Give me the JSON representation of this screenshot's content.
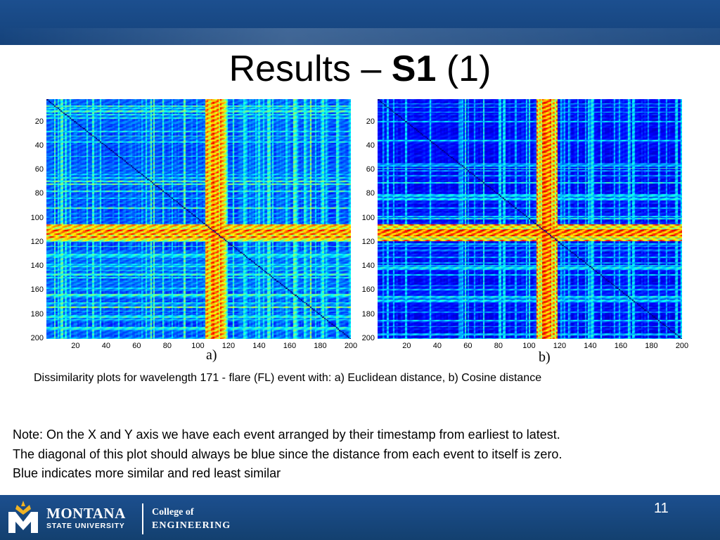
{
  "slide": {
    "title_pre": "Results – ",
    "title_bold": "S1",
    "title_post": " (1)",
    "caption": "Dissimilarity plots for wavelength 171 - flare (FL) event with: a) Euclidean distance, b) Cosine distance",
    "note_lines": [
      "Note: On the X and Y axis we have each event arranged by their timestamp from earliest to latest.",
      "The diagonal of this plot should always be blue since the distance from each event to itself is zero.",
      "Blue indicates more similar and red least similar"
    ],
    "page_number": "11"
  },
  "footer": {
    "university_line1": "MONTANA",
    "university_line2": "STATE UNIVERSITY",
    "college_line1": "College of",
    "college_line2": "ENGINEERING",
    "logo_icon": "msu-m-logo-icon"
  },
  "colors": {
    "bar_blue": "#1a4a87",
    "colormap": "jet"
  },
  "chart_data": [
    {
      "type": "heatmap",
      "panel_label": "a)",
      "title": "",
      "xlabel": "",
      "ylabel": "",
      "xlim": [
        1,
        200
      ],
      "ylim": [
        1,
        200
      ],
      "x_ticks": [
        "20",
        "40",
        "60",
        "80",
        "100",
        "120",
        "140",
        "160",
        "180",
        "200"
      ],
      "y_ticks": [
        "20",
        "40",
        "60",
        "80",
        "100",
        "120",
        "140",
        "160",
        "180",
        "200"
      ],
      "value_range": [
        0,
        1
      ],
      "high_dissimilarity_bands": [
        [
          105,
          118
        ],
        [
          108,
          116
        ]
      ],
      "diagonal_value": 0
    },
    {
      "type": "heatmap",
      "panel_label": "b)",
      "title": "",
      "xlabel": "",
      "ylabel": "",
      "xlim": [
        1,
        200
      ],
      "ylim": [
        1,
        200
      ],
      "x_ticks": [
        "20",
        "40",
        "60",
        "80",
        "100",
        "120",
        "140",
        "160",
        "180",
        "200"
      ],
      "y_ticks": [
        "20",
        "40",
        "60",
        "80",
        "100",
        "120",
        "140",
        "160",
        "180",
        "200"
      ],
      "value_range": [
        0,
        1
      ],
      "high_dissimilarity_bands": [
        [
          105,
          118
        ],
        [
          106,
          118
        ]
      ],
      "diagonal_value": 0
    }
  ]
}
